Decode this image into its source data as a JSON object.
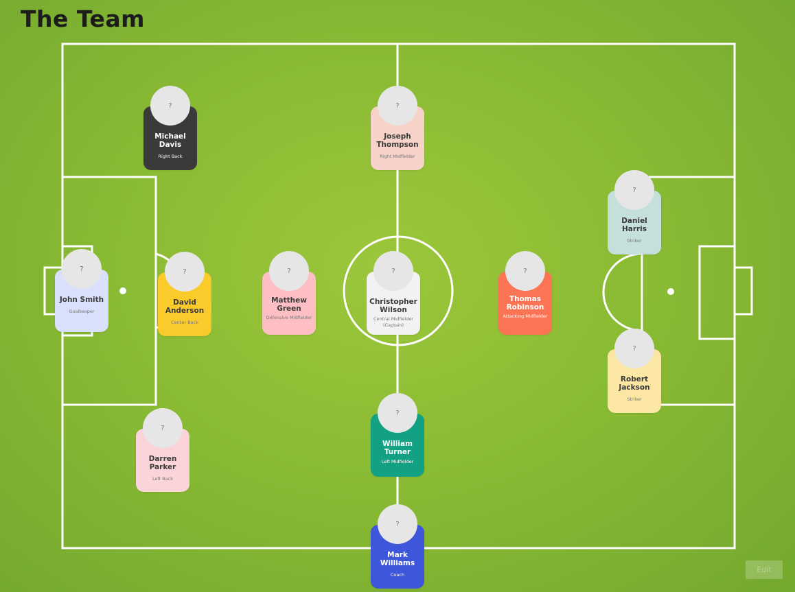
{
  "page": {
    "title": "The Team"
  },
  "players": [
    {
      "id": "michael",
      "name": "Michael Davis",
      "role": "Right Back",
      "avatar": "?",
      "color": "#3a3a3a"
    },
    {
      "id": "joseph",
      "name": "Joseph Thompson",
      "role": "Right Midfielder",
      "avatar": "?",
      "color": "#f6d2c8"
    },
    {
      "id": "daniel",
      "name": "Daniel Harris",
      "role": "Striker",
      "avatar": "?",
      "color": "#c5dfdb"
    },
    {
      "id": "john",
      "name": "John Smith",
      "role": "Goalkeeper",
      "avatar": "?",
      "color": "#d9e0fb"
    },
    {
      "id": "david",
      "name": "David Anderson",
      "role": "Center Back",
      "avatar": "?",
      "color": "#fbcb2c"
    },
    {
      "id": "matthew",
      "name": "Matthew Green",
      "role": "Defensive Midfielder",
      "avatar": "?",
      "color": "#fdbfc3"
    },
    {
      "id": "christopher",
      "name": "Christopher Wilson",
      "role": "Central Midfielder (Captain)",
      "avatar": "?",
      "color": "#f2f2f2"
    },
    {
      "id": "thomas",
      "name": "Thomas Robinson",
      "role": "Attacking Midfielder",
      "avatar": "?",
      "color": "#fb7453"
    },
    {
      "id": "robert",
      "name": "Robert Jackson",
      "role": "Striker",
      "avatar": "?",
      "color": "#fbe7a3"
    },
    {
      "id": "darren",
      "name": "Darren Parker",
      "role": "Left Back",
      "avatar": "?",
      "color": "#fad4d8"
    },
    {
      "id": "william",
      "name": "William Turner",
      "role": "Left Midfielder",
      "avatar": "?",
      "color": "#12a283"
    },
    {
      "id": "mark",
      "name": "Mark Williams",
      "role": "Coach",
      "avatar": "?",
      "color": "#3e56d9"
    }
  ],
  "edit_button": {
    "label": "Edit"
  }
}
